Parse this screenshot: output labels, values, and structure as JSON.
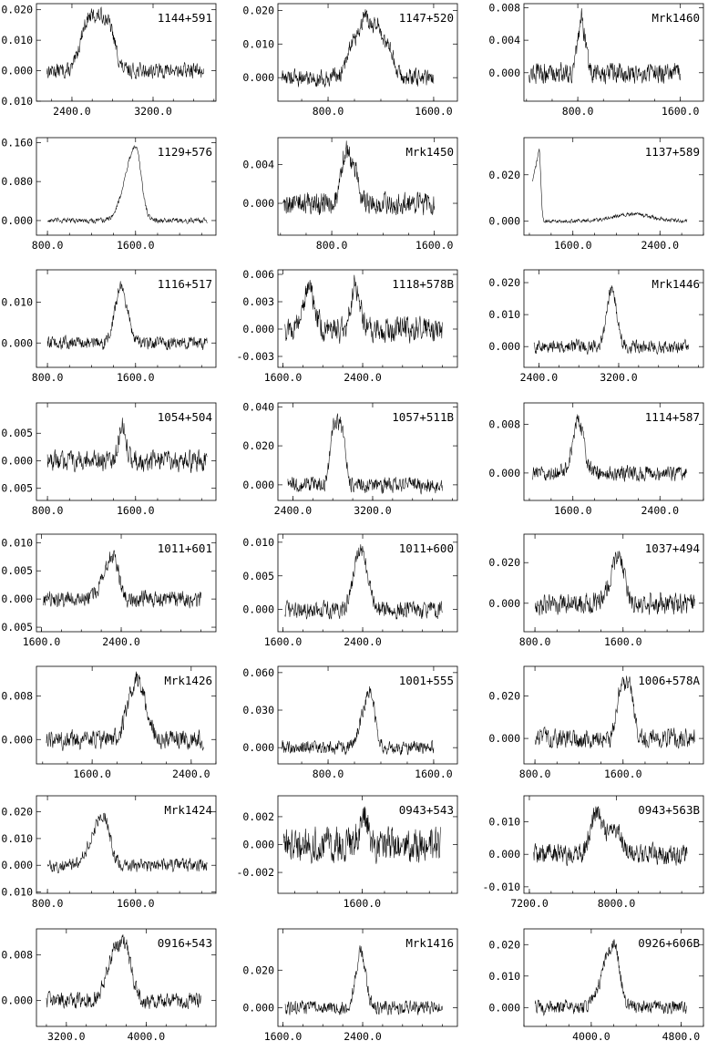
{
  "chart_data": [
    {
      "type": "line",
      "name": "1144+591",
      "xlim": [
        2050,
        3820
      ],
      "ylim": [
        -0.01,
        0.022
      ],
      "xticks": [
        {
          "v": 2400,
          "label": "2400.0"
        },
        {
          "v": 3200,
          "label": "3200.0"
        }
      ],
      "yticks": [
        {
          "v": 0.02,
          "label": "0.020"
        },
        {
          "v": 0.01,
          "label": "0.010"
        },
        {
          "v": 0.0,
          "label": "0.000"
        },
        {
          "v": -0.01,
          "label": "-0.010"
        }
      ],
      "xrange": [
        2150,
        3700
      ],
      "peaks": [
        {
          "c": 2650,
          "w": 160,
          "a": 0.018,
          "flat": true
        }
      ],
      "noise": 0.0022,
      "baseline": 0.0
    },
    {
      "type": "line",
      "name": "1147+520",
      "xlim": [
        420,
        1780
      ],
      "ylim": [
        -0.007,
        0.022
      ],
      "xticks": [
        {
          "v": 800,
          "label": "800.0"
        },
        {
          "v": 1600,
          "label": "1600.0"
        }
      ],
      "yticks": [
        {
          "v": 0.02,
          "label": "0.020"
        },
        {
          "v": 0.01,
          "label": "0.010"
        },
        {
          "v": 0.0,
          "label": "0.000"
        }
      ],
      "xrange": [
        450,
        1600
      ],
      "peaks": [
        {
          "c": 990,
          "w": 45,
          "a": 0.011
        },
        {
          "c": 1080,
          "w": 35,
          "a": 0.016
        },
        {
          "c": 1170,
          "w": 40,
          "a": 0.015
        },
        {
          "c": 1260,
          "w": 40,
          "a": 0.008
        }
      ],
      "noise": 0.0022,
      "baseline": 0.0
    },
    {
      "type": "line",
      "name": "Mrk1460",
      "xlim": [
        380,
        1780
      ],
      "ylim": [
        -0.0035,
        0.0085
      ],
      "xticks": [
        {
          "v": 800,
          "label": "800.0"
        },
        {
          "v": 1600,
          "label": "1600.0"
        }
      ],
      "yticks": [
        {
          "v": 0.008,
          "label": "0.008"
        },
        {
          "v": 0.004,
          "label": "0.004"
        },
        {
          "v": 0.0,
          "label": "0.000"
        }
      ],
      "xrange": [
        420,
        1600
      ],
      "peaks": [
        {
          "c": 830,
          "w": 28,
          "a": 0.0065
        }
      ],
      "noise": 0.0011,
      "baseline": 0.0
    },
    {
      "type": "line",
      "name": "1129+576",
      "xlim": [
        700,
        2330
      ],
      "ylim": [
        -0.03,
        0.17
      ],
      "xticks": [
        {
          "v": 800,
          "label": "800.0"
        },
        {
          "v": 1600,
          "label": "1600.0"
        }
      ],
      "yticks": [
        {
          "v": 0.16,
          "label": "0.160"
        },
        {
          "v": 0.08,
          "label": "0.080"
        },
        {
          "v": 0.0,
          "label": "0.000"
        }
      ],
      "xrange": [
        800,
        2250
      ],
      "peaks": [
        {
          "c": 1600,
          "w": 70,
          "a": 0.15,
          "skew": true
        }
      ],
      "noise": 0.0045,
      "baseline": 0.0
    },
    {
      "type": "line",
      "name": "Mrk1450",
      "xlim": [
        380,
        1780
      ],
      "ylim": [
        -0.0033,
        0.0068
      ],
      "xticks": [
        {
          "v": 800,
          "label": "800.0"
        },
        {
          "v": 1600,
          "label": "1600.0"
        }
      ],
      "yticks": [
        {
          "v": 0.004,
          "label": "0.004"
        },
        {
          "v": 0.0,
          "label": "0.000"
        }
      ],
      "xrange": [
        420,
        1600
      ],
      "peaks": [
        {
          "c": 910,
          "w": 35,
          "a": 0.0055
        },
        {
          "c": 985,
          "w": 30,
          "a": 0.003
        }
      ],
      "noise": 0.001,
      "baseline": 0.0
    },
    {
      "type": "line",
      "name": "1137+589",
      "xlim": [
        1150,
        2800
      ],
      "ylim": [
        -0.006,
        0.036
      ],
      "xticks": [
        {
          "v": 1600,
          "label": "1600.0"
        },
        {
          "v": 2400,
          "label": "2400.0"
        }
      ],
      "yticks": [
        {
          "v": 0.02,
          "label": "0.020"
        },
        {
          "v": 0.0,
          "label": "0.000"
        }
      ],
      "xrange": [
        1230,
        2650
      ],
      "peaks": [
        {
          "c": 1290,
          "w": 60,
          "a": 0.031,
          "edge": true
        },
        {
          "c": 2150,
          "w": 180,
          "a": 0.003
        }
      ],
      "noise": 0.0007,
      "baseline": 0.0
    },
    {
      "type": "line",
      "name": "1116+517",
      "xlim": [
        700,
        2330
      ],
      "ylim": [
        -0.006,
        0.018
      ],
      "xticks": [
        {
          "v": 800,
          "label": "800.0"
        },
        {
          "v": 1600,
          "label": "1600.0"
        }
      ],
      "yticks": [
        {
          "v": 0.01,
          "label": "0.010"
        },
        {
          "v": 0.0,
          "label": "0.000"
        }
      ],
      "xrange": [
        800,
        2250
      ],
      "peaks": [
        {
          "c": 1470,
          "w": 55,
          "a": 0.014
        }
      ],
      "noise": 0.0014,
      "baseline": 0.0
    },
    {
      "type": "line",
      "name": "1118+578B",
      "xlim": [
        1550,
        3350
      ],
      "ylim": [
        -0.0042,
        0.0065
      ],
      "xticks": [
        {
          "v": 1600,
          "label": "1600.0"
        },
        {
          "v": 2400,
          "label": "2400.0"
        }
      ],
      "yticks": [
        {
          "v": 0.006,
          "label": "0.006"
        },
        {
          "v": 0.003,
          "label": "0.003"
        },
        {
          "v": 0.0,
          "label": "0.000"
        },
        {
          "v": -0.003,
          "label": "-0.003"
        }
      ],
      "xrange": [
        1620,
        3200
      ],
      "peaks": [
        {
          "c": 1860,
          "w": 55,
          "a": 0.0045
        },
        {
          "c": 2330,
          "w": 45,
          "a": 0.0048
        }
      ],
      "noise": 0.0012,
      "baseline": 0.0
    },
    {
      "type": "line",
      "name": "Mrk1446",
      "xlim": [
        2250,
        4050
      ],
      "ylim": [
        -0.0065,
        0.024
      ],
      "xticks": [
        {
          "v": 2400,
          "label": "2400.0"
        },
        {
          "v": 3200,
          "label": "3200.0"
        }
      ],
      "yticks": [
        {
          "v": 0.02,
          "label": "0.020"
        },
        {
          "v": 0.01,
          "label": "0.010"
        },
        {
          "v": 0.0,
          "label": "0.000"
        }
      ],
      "xrange": [
        2350,
        3900
      ],
      "peaks": [
        {
          "c": 3130,
          "w": 50,
          "a": 0.018
        }
      ],
      "noise": 0.0018,
      "baseline": 0.0
    },
    {
      "type": "line",
      "name": "1054+504",
      "xlim": [
        700,
        2330
      ],
      "ylim": [
        -0.0072,
        0.0105
      ],
      "xticks": [
        {
          "v": 800,
          "label": "800.0"
        },
        {
          "v": 1600,
          "label": "1600.0"
        }
      ],
      "yticks": [
        {
          "v": 0.005,
          "label": "0.005"
        },
        {
          "v": 0.0,
          "label": "0.000"
        },
        {
          "v": -0.005,
          "label": "-0.005"
        }
      ],
      "xrange": [
        800,
        2250
      ],
      "peaks": [
        {
          "c": 1480,
          "w": 35,
          "a": 0.0065
        }
      ],
      "noise": 0.0016,
      "baseline": 0.0
    },
    {
      "type": "line",
      "name": "1057+511B",
      "xlim": [
        2250,
        4050
      ],
      "ylim": [
        -0.008,
        0.042
      ],
      "xticks": [
        {
          "v": 2400,
          "label": "2400.0"
        },
        {
          "v": 3200,
          "label": "3200.0"
        }
      ],
      "yticks": [
        {
          "v": 0.04,
          "label": "0.040"
        },
        {
          "v": 0.02,
          "label": "0.020"
        },
        {
          "v": 0.0,
          "label": "0.000"
        }
      ],
      "xrange": [
        2350,
        3900
      ],
      "peaks": [
        {
          "c": 2850,
          "w": 75,
          "a": 0.032,
          "flat": true
        }
      ],
      "noise": 0.0035,
      "baseline": 0.0
    },
    {
      "type": "line",
      "name": "1114+587",
      "xlim": [
        1150,
        2800
      ],
      "ylim": [
        -0.0045,
        0.0115
      ],
      "xticks": [
        {
          "v": 1600,
          "label": "1600.0"
        },
        {
          "v": 2400,
          "label": "2400.0"
        }
      ],
      "yticks": [
        {
          "v": 0.008,
          "label": "0.008"
        },
        {
          "v": 0.0,
          "label": "0.000"
        }
      ],
      "xrange": [
        1230,
        2650
      ],
      "peaks": [
        {
          "c": 1650,
          "w": 50,
          "a": 0.0085
        }
      ],
      "noise": 0.0011,
      "baseline": 0.0
    },
    {
      "type": "line",
      "name": "1011+601",
      "xlim": [
        1550,
        3350
      ],
      "ylim": [
        -0.0058,
        0.0115
      ],
      "xticks": [
        {
          "v": 1600,
          "label": "1600.0"
        },
        {
          "v": 2400,
          "label": "2400.0"
        }
      ],
      "yticks": [
        {
          "v": 0.01,
          "label": "0.010"
        },
        {
          "v": 0.005,
          "label": "0.005"
        },
        {
          "v": 0.0,
          "label": "0.000"
        },
        {
          "v": -0.005,
          "label": "-0.005"
        }
      ],
      "xrange": [
        1620,
        3200
      ],
      "peaks": [
        {
          "c": 2320,
          "w": 70,
          "a": 0.008,
          "skew": true
        }
      ],
      "noise": 0.0013,
      "baseline": 0.0
    },
    {
      "type": "line",
      "name": "1011+600",
      "xlim": [
        1550,
        3350
      ],
      "ylim": [
        -0.0033,
        0.0112
      ],
      "xticks": [
        {
          "v": 1600,
          "label": "1600.0"
        },
        {
          "v": 2400,
          "label": "2400.0"
        }
      ],
      "yticks": [
        {
          "v": 0.01,
          "label": "0.010"
        },
        {
          "v": 0.005,
          "label": "0.005"
        },
        {
          "v": 0.0,
          "label": "0.000"
        }
      ],
      "xrange": [
        1620,
        3200
      ],
      "peaks": [
        {
          "c": 2380,
          "w": 70,
          "a": 0.0085
        }
      ],
      "noise": 0.0011,
      "baseline": 0.0
    },
    {
      "type": "line",
      "name": "1037+494",
      "xlim": [
        700,
        2330
      ],
      "ylim": [
        -0.014,
        0.034
      ],
      "xticks": [
        {
          "v": 800,
          "label": "800.0"
        },
        {
          "v": 1600,
          "label": "1600.0"
        }
      ],
      "yticks": [
        {
          "v": 0.02,
          "label": "0.020"
        },
        {
          "v": 0.0,
          "label": "0.000"
        }
      ],
      "xrange": [
        800,
        2250
      ],
      "peaks": [
        {
          "c": 1570,
          "w": 60,
          "a": 0.022,
          "skew": true
        }
      ],
      "noise": 0.0045,
      "baseline": 0.0
    },
    {
      "type": "line",
      "name": "Mrk1426",
      "xlim": [
        1150,
        2600
      ],
      "ylim": [
        -0.0045,
        0.0135
      ],
      "xticks": [
        {
          "v": 1600,
          "label": "1600.0"
        },
        {
          "v": 2400,
          "label": "2400.0"
        }
      ],
      "yticks": [
        {
          "v": 0.008,
          "label": "0.008"
        },
        {
          "v": 0.0,
          "label": "0.000"
        }
      ],
      "xrange": [
        1230,
        2500
      ],
      "peaks": [
        {
          "c": 1960,
          "w": 70,
          "a": 0.011
        }
      ],
      "noise": 0.0015,
      "baseline": 0.0
    },
    {
      "type": "line",
      "name": "1001+555",
      "xlim": [
        420,
        1780
      ],
      "ylim": [
        -0.013,
        0.065
      ],
      "xticks": [
        {
          "v": 800,
          "label": "800.0"
        },
        {
          "v": 1600,
          "label": "1600.0"
        }
      ],
      "yticks": [
        {
          "v": 0.06,
          "label": "0.060"
        },
        {
          "v": 0.03,
          "label": "0.030"
        },
        {
          "v": 0.0,
          "label": "0.000"
        }
      ],
      "xrange": [
        450,
        1600
      ],
      "peaks": [
        {
          "c": 1120,
          "w": 45,
          "a": 0.045,
          "skew": true
        }
      ],
      "noise": 0.0045,
      "baseline": 0.0
    },
    {
      "type": "line",
      "name": "1006+578A",
      "xlim": [
        700,
        2330
      ],
      "ylim": [
        -0.012,
        0.034
      ],
      "xticks": [
        {
          "v": 800,
          "label": "800.0"
        },
        {
          "v": 1600,
          "label": "1600.0"
        }
      ],
      "yticks": [
        {
          "v": 0.02,
          "label": "0.020"
        },
        {
          "v": 0.0,
          "label": "0.000"
        }
      ],
      "xrange": [
        800,
        2250
      ],
      "peaks": [
        {
          "c": 1620,
          "w": 75,
          "a": 0.026,
          "flat": true
        }
      ],
      "noise": 0.0038,
      "baseline": 0.0
    },
    {
      "type": "line",
      "name": "Mrk1424",
      "xlim": [
        700,
        2330
      ],
      "ylim": [
        -0.0105,
        0.026
      ],
      "xticks": [
        {
          "v": 800,
          "label": "800.0"
        },
        {
          "v": 1600,
          "label": "1600.0"
        }
      ],
      "yticks": [
        {
          "v": 0.02,
          "label": "0.020"
        },
        {
          "v": 0.01,
          "label": "0.010"
        },
        {
          "v": 0.0,
          "label": "0.000"
        },
        {
          "v": -0.01,
          "label": "-0.010"
        }
      ],
      "xrange": [
        800,
        2250
      ],
      "peaks": [
        {
          "c": 1310,
          "w": 75,
          "a": 0.019,
          "skew": true
        }
      ],
      "noise": 0.0022,
      "baseline": 0.0
    },
    {
      "type": "line",
      "name": "0943+543",
      "xlim": [
        850,
        2450
      ],
      "ylim": [
        -0.0035,
        0.0035
      ],
      "xticks": [
        {
          "v": 1600,
          "label": "1600.0"
        }
      ],
      "yticks": [
        {
          "v": 0.002,
          "label": "0.002"
        },
        {
          "v": 0.0,
          "label": "0.000"
        },
        {
          "v": -0.002,
          "label": "-0.002"
        }
      ],
      "xrange": [
        900,
        2300
      ],
      "peaks": [
        {
          "c": 1620,
          "w": 40,
          "a": 0.0018
        }
      ],
      "noise": 0.0011,
      "baseline": 0.0
    },
    {
      "type": "line",
      "name": "0943+563B",
      "xlim": [
        7150,
        8800
      ],
      "ylim": [
        -0.012,
        0.018
      ],
      "xticks": [
        {
          "v": 7200,
          "label": "7200.0"
        },
        {
          "v": 8000,
          "label": "8000.0"
        }
      ],
      "yticks": [
        {
          "v": 0.01,
          "label": "0.010"
        },
        {
          "v": 0.0,
          "label": "0.000"
        },
        {
          "v": -0.01,
          "label": "-0.010"
        }
      ],
      "xrange": [
        7240,
        8650
      ],
      "peaks": [
        {
          "c": 7820,
          "w": 60,
          "a": 0.013
        },
        {
          "c": 7990,
          "w": 55,
          "a": 0.008
        }
      ],
      "noise": 0.0028,
      "baseline": 0.0
    },
    {
      "type": "line",
      "name": "0916+543",
      "xlim": [
        2900,
        4700
      ],
      "ylim": [
        -0.0045,
        0.0125
      ],
      "xticks": [
        {
          "v": 3200,
          "label": "3200.0"
        },
        {
          "v": 4000,
          "label": "4000.0"
        }
      ],
      "yticks": [
        {
          "v": 0.008,
          "label": "0.008"
        },
        {
          "v": 0.0,
          "label": "0.000"
        }
      ],
      "xrange": [
        3000,
        4550
      ],
      "peaks": [
        {
          "c": 3680,
          "w": 80,
          "a": 0.008
        },
        {
          "c": 3800,
          "w": 60,
          "a": 0.007
        }
      ],
      "noise": 0.0012,
      "baseline": 0.0
    },
    {
      "type": "line",
      "name": "Mrk1416",
      "xlim": [
        1550,
        3350
      ],
      "ylim": [
        -0.01,
        0.042
      ],
      "xticks": [
        {
          "v": 1600,
          "label": "1600.0"
        },
        {
          "v": 2400,
          "label": "2400.0"
        }
      ],
      "yticks": [
        {
          "v": 0.02,
          "label": "0.020"
        },
        {
          "v": 0.0,
          "label": "0.000"
        }
      ],
      "xrange": [
        1620,
        3200
      ],
      "peaks": [
        {
          "c": 2380,
          "w": 50,
          "a": 0.03
        }
      ],
      "noise": 0.0032,
      "baseline": 0.0
    },
    {
      "type": "line",
      "name": "0926+606B",
      "xlim": [
        3400,
        5000
      ],
      "ylim": [
        -0.006,
        0.025
      ],
      "xticks": [
        {
          "v": 4000,
          "label": "4000.0"
        },
        {
          "v": 4800,
          "label": "4800.0"
        }
      ],
      "yticks": [
        {
          "v": 0.02,
          "label": "0.020"
        },
        {
          "v": 0.01,
          "label": "0.010"
        },
        {
          "v": 0.0,
          "label": "0.000"
        }
      ],
      "xrange": [
        3500,
        4850
      ],
      "peaks": [
        {
          "c": 4200,
          "w": 70,
          "a": 0.02,
          "skew": true
        }
      ],
      "noise": 0.0019,
      "baseline": 0.0
    }
  ]
}
